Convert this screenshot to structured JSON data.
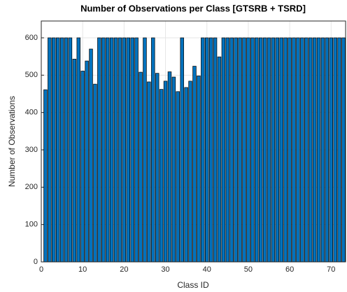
{
  "chart_data": {
    "type": "bar",
    "title": "Number of Observations per Class [GTSRB + TSRD]",
    "x_label": "Class ID",
    "y_label": "Number of Observations",
    "x": [
      1,
      2,
      3,
      4,
      5,
      6,
      7,
      8,
      9,
      10,
      11,
      12,
      13,
      14,
      15,
      16,
      17,
      18,
      19,
      20,
      21,
      22,
      23,
      24,
      25,
      26,
      27,
      28,
      29,
      30,
      31,
      32,
      33,
      34,
      35,
      36,
      37,
      38,
      39,
      40,
      41,
      42,
      43,
      44,
      45,
      46,
      47,
      48,
      49,
      50,
      51,
      52,
      53,
      54,
      55,
      56,
      57,
      58,
      59,
      60,
      61,
      62,
      63,
      64,
      65,
      66,
      67,
      68,
      69,
      70,
      71,
      72,
      73
    ],
    "values": [
      461,
      600,
      600,
      600,
      600,
      600,
      600,
      543,
      600,
      511,
      538,
      570,
      476,
      600,
      600,
      600,
      600,
      600,
      600,
      600,
      600,
      600,
      600,
      508,
      600,
      482,
      600,
      505,
      462,
      484,
      509,
      495,
      456,
      600,
      467,
      484,
      524,
      498,
      600,
      600,
      600,
      600,
      549,
      600,
      600,
      600,
      600,
      600,
      600,
      600,
      600,
      600,
      600,
      600,
      600,
      600,
      600,
      600,
      600,
      600,
      600,
      600,
      600,
      600,
      600,
      600,
      600,
      600,
      600,
      600,
      600,
      600,
      600
    ],
    "color": "#0072bd",
    "xlim": [
      0,
      73.5
    ],
    "xticks": [
      0,
      10,
      20,
      30,
      40,
      50,
      60,
      70
    ],
    "ylim": [
      0,
      645
    ],
    "yticks": [
      0,
      100,
      200,
      300,
      400,
      500,
      600
    ],
    "grid": true
  }
}
